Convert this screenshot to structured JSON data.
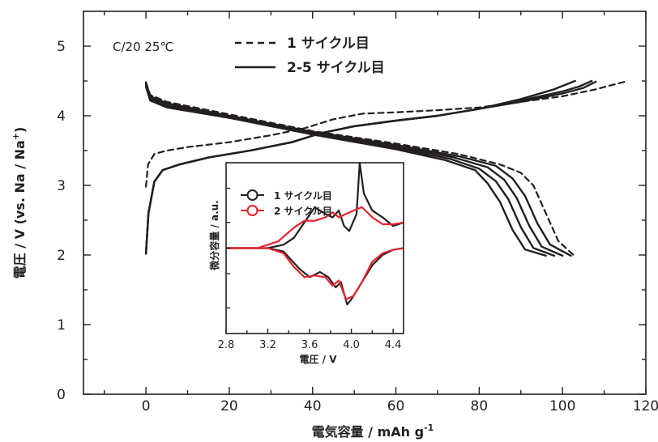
{
  "chart_data": [
    {
      "type": "line",
      "annotation": "C/20 25℃",
      "xlabel": "電気容量 / mAh g",
      "xlabel_sup": "-1",
      "ylabel": "電圧 / V (vs. Na / Na",
      "ylabel_sup": "+",
      "ylabel_end": ")",
      "xlim": [
        -15,
        120
      ],
      "ylim": [
        0,
        5.5
      ],
      "xticks": [
        0,
        20,
        40,
        60,
        80,
        100,
        120
      ],
      "xtick_labels": [
        "0",
        "20",
        "40",
        "60",
        "80",
        "100",
        "120"
      ],
      "yticks": [
        0,
        1,
        2,
        3,
        4,
        5
      ],
      "ytick_labels": [
        "0",
        "1",
        "2",
        "3",
        "4",
        "5"
      ],
      "grid": false,
      "legend_position": "top-center",
      "series": [
        {
          "name": "1 サイクル目",
          "style": "dashed",
          "color": "#231f20",
          "curves": [
            [
              [
                0,
                2.98
              ],
              [
                0.5,
                3.3
              ],
              [
                2,
                3.45
              ],
              [
                5,
                3.5
              ],
              [
                10,
                3.55
              ],
              [
                20,
                3.62
              ],
              [
                30,
                3.72
              ],
              [
                38,
                3.82
              ],
              [
                45,
                3.95
              ],
              [
                52,
                4.03
              ],
              [
                60,
                4.05
              ],
              [
                70,
                4.08
              ],
              [
                80,
                4.12
              ],
              [
                90,
                4.2
              ],
              [
                100,
                4.28
              ],
              [
                108,
                4.38
              ],
              [
                115,
                4.49
              ]
            ],
            [
              [
                0,
                4.48
              ],
              [
                1,
                4.3
              ],
              [
                5,
                4.2
              ],
              [
                20,
                4.02
              ],
              [
                40,
                3.78
              ],
              [
                60,
                3.6
              ],
              [
                75,
                3.45
              ],
              [
                85,
                3.3
              ],
              [
                90,
                3.18
              ],
              [
                93,
                3.0
              ],
              [
                96,
                2.6
              ],
              [
                99,
                2.2
              ],
              [
                103,
                1.98
              ]
            ]
          ]
        },
        {
          "name": "2-5 サイクル目",
          "style": "solid",
          "color": "#231f20",
          "curves": [
            [
              [
                0,
                2.02
              ],
              [
                0.6,
                2.6
              ],
              [
                2,
                3.05
              ],
              [
                4,
                3.22
              ],
              [
                8,
                3.3
              ],
              [
                15,
                3.4
              ],
              [
                25,
                3.5
              ],
              [
                35,
                3.62
              ],
              [
                42,
                3.75
              ],
              [
                50,
                3.85
              ],
              [
                60,
                3.93
              ],
              [
                70,
                4.0
              ],
              [
                80,
                4.1
              ],
              [
                90,
                4.2
              ],
              [
                100,
                4.32
              ],
              [
                105,
                4.4
              ],
              [
                108,
                4.49
              ]
            ],
            [
              [
                0,
                2.02
              ],
              [
                0.6,
                2.6
              ],
              [
                2,
                3.05
              ],
              [
                4,
                3.22
              ],
              [
                8,
                3.3
              ],
              [
                15,
                3.4
              ],
              [
                25,
                3.5
              ],
              [
                35,
                3.62
              ],
              [
                42,
                3.75
              ],
              [
                50,
                3.85
              ],
              [
                60,
                3.93
              ],
              [
                70,
                4.0
              ],
              [
                80,
                4.1
              ],
              [
                90,
                4.22
              ],
              [
                100,
                4.35
              ],
              [
                104,
                4.42
              ],
              [
                107,
                4.5
              ]
            ],
            [
              [
                0,
                2.02
              ],
              [
                0.6,
                2.6
              ],
              [
                2,
                3.05
              ],
              [
                4,
                3.22
              ],
              [
                8,
                3.3
              ],
              [
                15,
                3.4
              ],
              [
                25,
                3.5
              ],
              [
                35,
                3.62
              ],
              [
                42,
                3.75
              ],
              [
                50,
                3.85
              ],
              [
                60,
                3.93
              ],
              [
                70,
                4.0
              ],
              [
                80,
                4.1
              ],
              [
                90,
                4.24
              ],
              [
                98,
                4.38
              ],
              [
                103,
                4.5
              ]
            ],
            [
              [
                0,
                4.48
              ],
              [
                1,
                4.28
              ],
              [
                5,
                4.18
              ],
              [
                20,
                4.0
              ],
              [
                40,
                3.77
              ],
              [
                60,
                3.58
              ],
              [
                75,
                3.42
              ],
              [
                84,
                3.28
              ],
              [
                88,
                3.1
              ],
              [
                91,
                2.85
              ],
              [
                94,
                2.45
              ],
              [
                97,
                2.15
              ],
              [
                102,
                1.99
              ]
            ],
            [
              [
                0,
                4.46
              ],
              [
                1,
                4.26
              ],
              [
                5,
                4.16
              ],
              [
                20,
                3.99
              ],
              [
                40,
                3.75
              ],
              [
                60,
                3.56
              ],
              [
                74,
                3.4
              ],
              [
                82,
                3.26
              ],
              [
                86,
                3.08
              ],
              [
                89,
                2.82
              ],
              [
                92,
                2.42
              ],
              [
                95,
                2.12
              ],
              [
                100,
                1.99
              ]
            ],
            [
              [
                0,
                4.44
              ],
              [
                1,
                4.24
              ],
              [
                5,
                4.14
              ],
              [
                20,
                3.98
              ],
              [
                40,
                3.74
              ],
              [
                60,
                3.54
              ],
              [
                73,
                3.38
              ],
              [
                80,
                3.24
              ],
              [
                84,
                3.06
              ],
              [
                87,
                2.8
              ],
              [
                90,
                2.4
              ],
              [
                93,
                2.1
              ],
              [
                98,
                1.99
              ]
            ],
            [
              [
                0,
                4.42
              ],
              [
                1,
                4.22
              ],
              [
                5,
                4.12
              ],
              [
                20,
                3.97
              ],
              [
                40,
                3.73
              ],
              [
                60,
                3.52
              ],
              [
                72,
                3.36
              ],
              [
                79,
                3.22
              ],
              [
                82,
                3.03
              ],
              [
                85,
                2.76
              ],
              [
                88,
                2.36
              ],
              [
                91,
                2.08
              ],
              [
                96,
                1.99
              ]
            ]
          ]
        }
      ]
    },
    {
      "type": "line",
      "xlabel": "電圧 / V",
      "ylabel": "微分容量 / a.u.",
      "xlim": [
        2.8,
        4.5
      ],
      "ylim": [
        0,
        1
      ],
      "xticks": [
        2.8,
        3.2,
        3.6,
        4.0,
        4.4
      ],
      "xtick_labels": [
        "2.8",
        "3.2",
        "3.6",
        "4.0",
        "4.4"
      ],
      "grid": false,
      "legend_position": "top-left",
      "series": [
        {
          "name": "1 サイクル目",
          "color": "#231f20",
          "marker": "circle-open",
          "curves": [
            [
              [
                2.8,
                0.5
              ],
              [
                3.2,
                0.5
              ],
              [
                3.35,
                0.52
              ],
              [
                3.45,
                0.56
              ],
              [
                3.55,
                0.65
              ],
              [
                3.65,
                0.74
              ],
              [
                3.75,
                0.7
              ],
              [
                3.82,
                0.68
              ],
              [
                3.88,
                0.72
              ],
              [
                3.93,
                0.63
              ],
              [
                3.98,
                0.6
              ],
              [
                4.05,
                0.7
              ],
              [
                4.08,
                1.0
              ],
              [
                4.12,
                0.82
              ],
              [
                4.2,
                0.72
              ],
              [
                4.3,
                0.68
              ],
              [
                4.4,
                0.63
              ],
              [
                4.5,
                0.65
              ]
            ],
            [
              [
                2.8,
                0.5
              ],
              [
                3.2,
                0.5
              ],
              [
                3.35,
                0.48
              ],
              [
                3.5,
                0.38
              ],
              [
                3.6,
                0.33
              ],
              [
                3.7,
                0.36
              ],
              [
                3.78,
                0.33
              ],
              [
                3.85,
                0.27
              ],
              [
                3.9,
                0.3
              ],
              [
                3.96,
                0.17
              ],
              [
                4.0,
                0.2
              ],
              [
                4.08,
                0.28
              ],
              [
                4.2,
                0.4
              ],
              [
                4.3,
                0.46
              ],
              [
                4.4,
                0.49
              ],
              [
                4.5,
                0.5
              ]
            ]
          ]
        },
        {
          "name": "2 サイクル目",
          "color": "#e8222b",
          "marker": "circle-open",
          "curves": [
            [
              [
                2.8,
                0.5
              ],
              [
                3.1,
                0.5
              ],
              [
                3.3,
                0.54
              ],
              [
                3.45,
                0.62
              ],
              [
                3.55,
                0.66
              ],
              [
                3.65,
                0.66
              ],
              [
                3.75,
                0.68
              ],
              [
                3.82,
                0.71
              ],
              [
                3.88,
                0.68
              ],
              [
                3.95,
                0.7
              ],
              [
                4.02,
                0.72
              ],
              [
                4.1,
                0.74
              ],
              [
                4.2,
                0.68
              ],
              [
                4.3,
                0.64
              ],
              [
                4.4,
                0.64
              ],
              [
                4.5,
                0.65
              ]
            ],
            [
              [
                2.8,
                0.5
              ],
              [
                3.2,
                0.5
              ],
              [
                3.35,
                0.47
              ],
              [
                3.45,
                0.39
              ],
              [
                3.55,
                0.33
              ],
              [
                3.65,
                0.34
              ],
              [
                3.75,
                0.33
              ],
              [
                3.82,
                0.28
              ],
              [
                3.88,
                0.31
              ],
              [
                3.95,
                0.2
              ],
              [
                4.02,
                0.22
              ],
              [
                4.1,
                0.3
              ],
              [
                4.2,
                0.42
              ],
              [
                4.3,
                0.47
              ],
              [
                4.4,
                0.49
              ],
              [
                4.5,
                0.5
              ]
            ]
          ]
        }
      ]
    }
  ]
}
